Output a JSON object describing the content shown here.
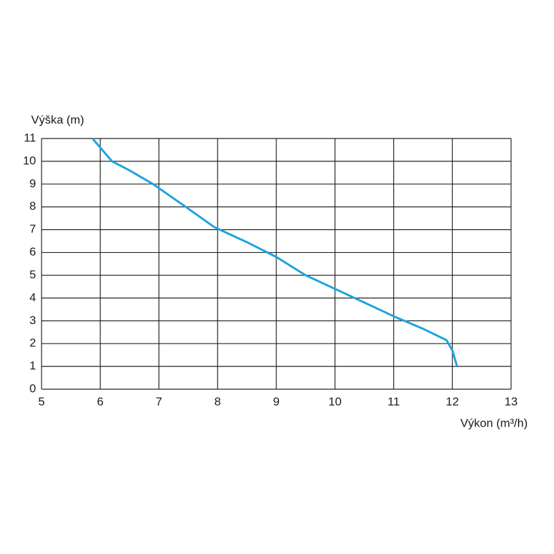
{
  "chart_data": {
    "type": "line",
    "x_label": "Výkon (m³/h)",
    "y_label": "Výška (m)",
    "x": [
      5.87,
      6.0,
      6.2,
      6.5,
      6.9,
      7.4,
      7.95,
      8.5,
      9.0,
      9.5,
      10.0,
      10.5,
      11.0,
      11.5,
      11.9,
      12.0,
      12.08
    ],
    "values": [
      11,
      10.6,
      10.0,
      9.6,
      9.0,
      8.1,
      7.1,
      6.45,
      5.8,
      5.0,
      4.4,
      3.8,
      3.2,
      2.65,
      2.15,
      1.7,
      1.0
    ],
    "color": "#1ba3dd",
    "xlim": [
      5,
      13
    ],
    "xticks": [
      5,
      6,
      7,
      8,
      9,
      10,
      11,
      12,
      13
    ],
    "ylim": [
      0,
      11
    ],
    "yticks": [
      0,
      1,
      2,
      3,
      4,
      5,
      6,
      7,
      8,
      9,
      10,
      11
    ],
    "grid": true
  }
}
